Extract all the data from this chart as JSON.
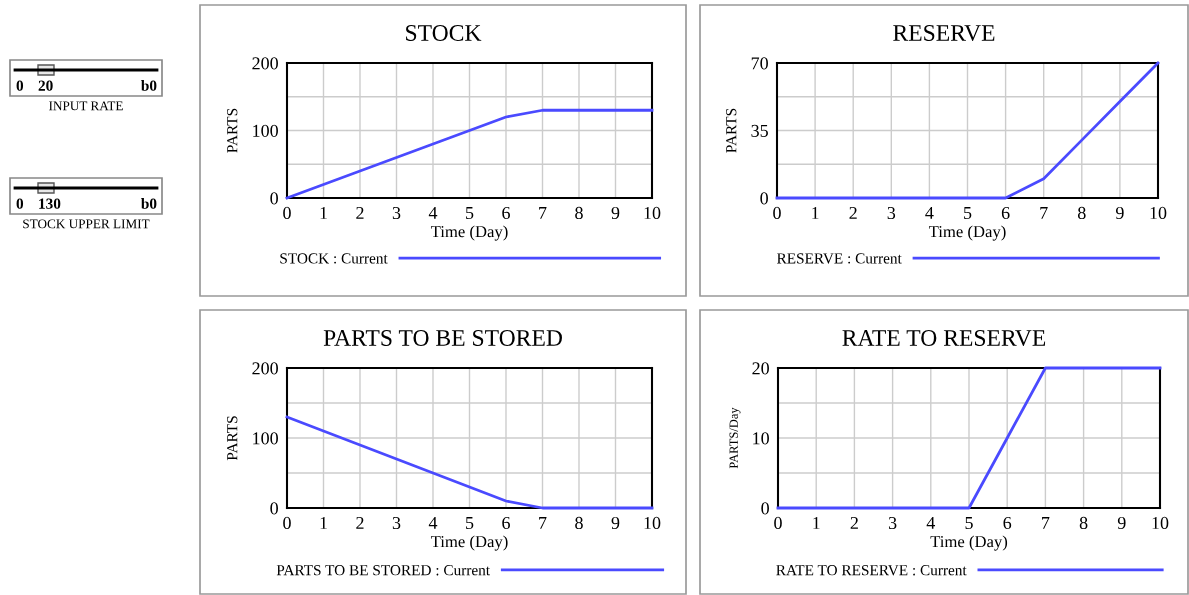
{
  "chart_data": [
    {
      "type": "other",
      "annotations": [
        "0",
        "20",
        "b0",
        "INPUT RATE",
        "0",
        "130",
        "b0",
        "STOCK UPPER LIMIT"
      ]
    },
    {
      "type": "line",
      "title": "STOCK",
      "xlabel": "Time (Day)",
      "ylabel": "PARTS",
      "x": [
        0,
        1,
        2,
        3,
        4,
        5,
        6,
        7,
        8,
        9,
        10
      ],
      "series": [
        {
          "name": "STOCK : Current",
          "color": "#4a4aff",
          "values": [
            0,
            20,
            40,
            60,
            80,
            100,
            120,
            130,
            130,
            130,
            130
          ]
        }
      ],
      "xlim": [
        0,
        10
      ],
      "xticks": [
        0,
        1,
        2,
        3,
        4,
        5,
        6,
        7,
        8,
        9,
        10
      ],
      "ylim": [
        0,
        200
      ],
      "yticks": [
        0,
        {
          "value": 50,
          "label": null
        },
        100,
        {
          "value": 150,
          "label": null
        },
        200
      ],
      "grid": true,
      "legend": "bottom"
    },
    {
      "type": "line",
      "title": "RESERVE",
      "xlabel": "Time (Day)",
      "ylabel": "PARTS",
      "x": [
        0,
        1,
        2,
        3,
        4,
        5,
        6,
        7,
        8,
        9,
        10
      ],
      "series": [
        {
          "name": "RESERVE : Current",
          "color": "#4a4aff",
          "values": [
            0,
            0,
            0,
            0,
            0,
            0,
            0,
            10,
            30,
            50,
            70
          ]
        }
      ],
      "xlim": [
        0,
        10
      ],
      "xticks": [
        0,
        1,
        2,
        3,
        4,
        5,
        6,
        7,
        8,
        9,
        10
      ],
      "ylim": [
        0,
        70
      ],
      "yticks": [
        0,
        {
          "value": 17.5,
          "label": null
        },
        35,
        {
          "value": 52.5,
          "label": null
        },
        70
      ],
      "grid": true,
      "legend": "bottom"
    },
    {
      "type": "line",
      "title": "PARTS TO BE STORED",
      "xlabel": "Time (Day)",
      "ylabel": "PARTS",
      "x": [
        0,
        1,
        2,
        3,
        4,
        5,
        6,
        7,
        8,
        9,
        10
      ],
      "series": [
        {
          "name": "PARTS TO BE STORED : Current",
          "color": "#4a4aff",
          "values": [
            130,
            110,
            90,
            70,
            50,
            30,
            10,
            0,
            0,
            0,
            0
          ]
        }
      ],
      "xlim": [
        0,
        10
      ],
      "xticks": [
        0,
        1,
        2,
        3,
        4,
        5,
        6,
        7,
        8,
        9,
        10
      ],
      "ylim": [
        0,
        200
      ],
      "yticks": [
        0,
        {
          "value": 50,
          "label": null
        },
        100,
        {
          "value": 150,
          "label": null
        },
        200
      ],
      "grid": true,
      "legend": "bottom"
    },
    {
      "type": "line",
      "title": "RATE TO RESERVE",
      "xlabel": "Time (Day)",
      "ylabel": "PARTS/Day",
      "x": [
        0,
        1,
        2,
        3,
        4,
        5,
        6,
        7,
        8,
        9,
        10
      ],
      "series": [
        {
          "name": "RATE TO RESERVE : Current",
          "color": "#4a4aff",
          "values": [
            0,
            0,
            0,
            0,
            0,
            0,
            10,
            20,
            20,
            20,
            20
          ]
        }
      ],
      "xlim": [
        0,
        10
      ],
      "xticks": [
        0,
        1,
        2,
        3,
        4,
        5,
        6,
        7,
        8,
        9,
        10
      ],
      "ylim": [
        0,
        20
      ],
      "yticks": [
        0,
        {
          "value": 5,
          "label": null
        },
        10,
        {
          "value": 15,
          "label": null
        },
        20
      ],
      "grid": true,
      "legend": "bottom"
    }
  ]
}
